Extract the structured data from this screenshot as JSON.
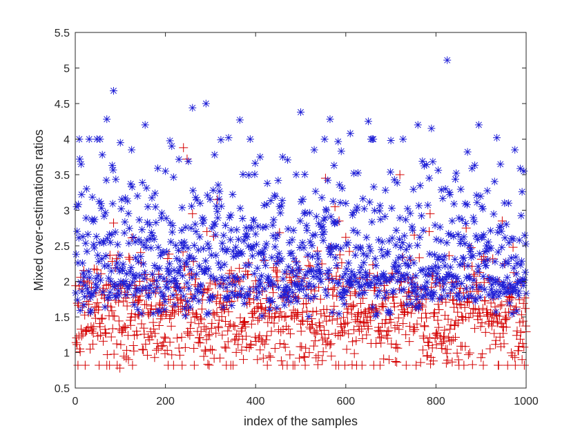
{
  "chart_data": {
    "type": "scatter",
    "title": "",
    "xlabel": "index of the samples",
    "ylabel": "Mixed over-estimations ratios",
    "xlim": [
      0,
      1000
    ],
    "ylim": [
      0.5,
      5.5
    ],
    "xticks": [
      0,
      200,
      400,
      600,
      800,
      1000
    ],
    "yticks": [
      0.5,
      1,
      1.5,
      2,
      2.5,
      3,
      3.5,
      4,
      4.5,
      5,
      5.5
    ],
    "grid": false,
    "legend": "none",
    "series": [
      {
        "marker": "+",
        "color": "#d40000",
        "description": "1000 samples, one per index 1..1000; values mostly 0.8 to 2.6, densest 1.0 to 2.0",
        "x": [
          10,
          37,
          71,
          85,
          99,
          104,
          176,
          200,
          240,
          248,
          260,
          315,
          330,
          404,
          450,
          480,
          497,
          502,
          555,
          576,
          585,
          640,
          655,
          693,
          701,
          720,
          773,
          787,
          823,
          867,
          895,
          903,
          947,
          975,
          991
        ],
        "y": [
          1.05,
          1.3,
          0.97,
          2.82,
          0.78,
          1.28,
          0.93,
          1.2,
          3.88,
          3.72,
          2.95,
          3.15,
          1.6,
          0.9,
          2.28,
          1.98,
          0.92,
          1.08,
          3.45,
          3.05,
          2.85,
          1.55,
          1.45,
          1.2,
          1.12,
          3.5,
          1.2,
          2.95,
          0.85,
          2.75,
          1.6,
          0.98,
          2.85,
          0.93,
          0.9
        ]
      },
      {
        "marker": "*",
        "color": "#1f1fd6",
        "description": "1000 samples, one per index 1..1000; values mostly 1.5 to 4.0, densest 1.6 to 2.6",
        "x": [
          3,
          10,
          25,
          60,
          70,
          85,
          100,
          125,
          155,
          200,
          260,
          290,
          340,
          365,
          410,
          460,
          500,
          530,
          565,
          610,
          650,
          700,
          760,
          790,
          825,
          870,
          895,
          935,
          975,
          995
        ],
        "y": [
          3.05,
          3.72,
          3.3,
          3.78,
          4.28,
          4.68,
          3.95,
          3.85,
          4.2,
          3.55,
          4.44,
          4.5,
          4.02,
          4.27,
          3.75,
          3.75,
          4.38,
          3.85,
          4.28,
          4.08,
          4.25,
          3.98,
          4.2,
          4.15,
          5.11,
          3.82,
          4.2,
          4.02,
          3.85,
          3.55
        ]
      }
    ]
  }
}
